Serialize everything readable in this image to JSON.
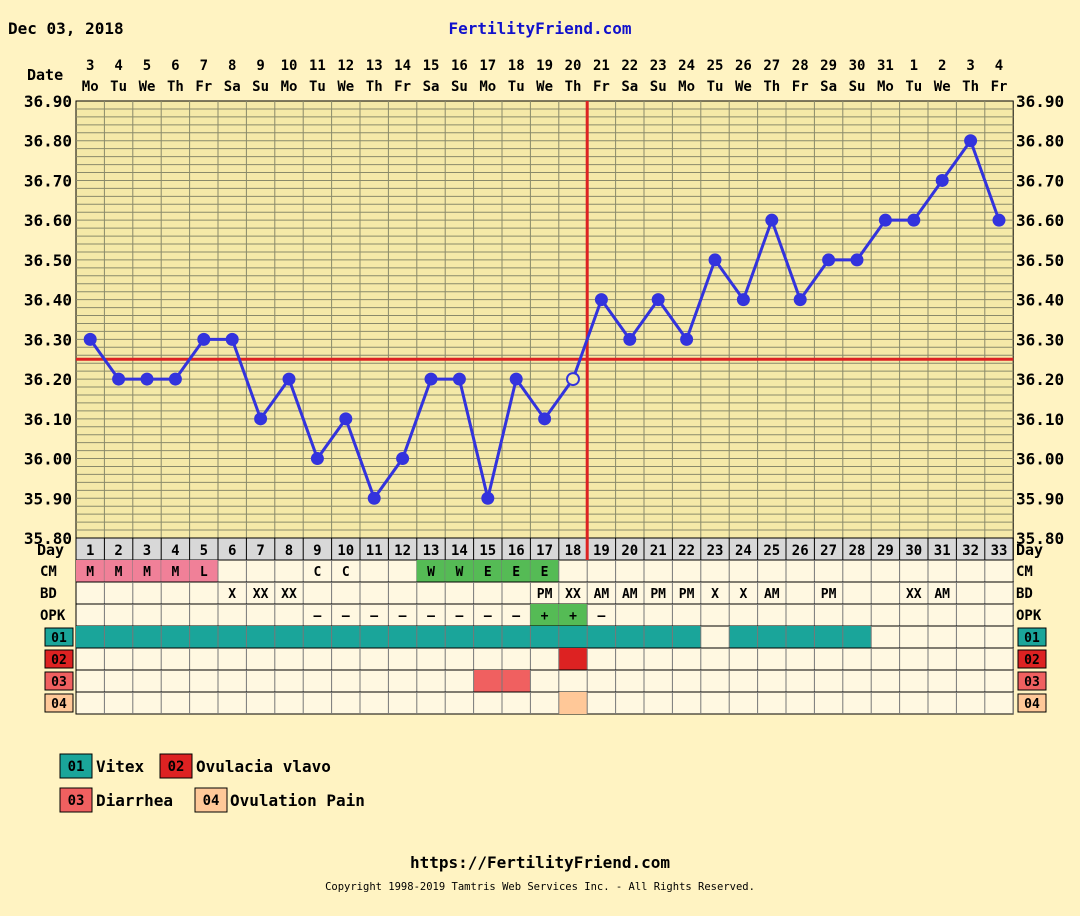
{
  "header": {
    "date_text": "Dec 03, 2018",
    "site_title": "FertilityFriend.com",
    "date_label": "Date",
    "day_label": "Day"
  },
  "colors": {
    "background": "#FFF3C2",
    "plot_bg": "#F5E9A8",
    "grid": "#8A8A6A",
    "temp_line": "#3333DD",
    "coverline": "#DD2222",
    "ovulation_line": "#DD2222",
    "cm_mucus_pink": "#F08098",
    "cm_egg_green": "#55BB55",
    "opk_green": "#55BB55",
    "cell_bg": "#FFF8E1",
    "vitex": "#1AA59A",
    "ovulacia": "#DD2222",
    "diarrhea": "#F06060",
    "ovulation_pain": "#FFC898"
  },
  "dates": [
    {
      "d": "3",
      "w": "Mo"
    },
    {
      "d": "4",
      "w": "Tu"
    },
    {
      "d": "5",
      "w": "We"
    },
    {
      "d": "6",
      "w": "Th"
    },
    {
      "d": "7",
      "w": "Fr"
    },
    {
      "d": "8",
      "w": "Sa"
    },
    {
      "d": "9",
      "w": "Su"
    },
    {
      "d": "10",
      "w": "Mo"
    },
    {
      "d": "11",
      "w": "Tu"
    },
    {
      "d": "12",
      "w": "We"
    },
    {
      "d": "13",
      "w": "Th"
    },
    {
      "d": "14",
      "w": "Fr"
    },
    {
      "d": "15",
      "w": "Sa"
    },
    {
      "d": "16",
      "w": "Su"
    },
    {
      "d": "17",
      "w": "Mo"
    },
    {
      "d": "18",
      "w": "Tu"
    },
    {
      "d": "19",
      "w": "We"
    },
    {
      "d": "20",
      "w": "Th"
    },
    {
      "d": "21",
      "w": "Fr"
    },
    {
      "d": "22",
      "w": "Sa"
    },
    {
      "d": "23",
      "w": "Su"
    },
    {
      "d": "24",
      "w": "Mo"
    },
    {
      "d": "25",
      "w": "Tu"
    },
    {
      "d": "26",
      "w": "We"
    },
    {
      "d": "27",
      "w": "Th"
    },
    {
      "d": "28",
      "w": "Fr"
    },
    {
      "d": "29",
      "w": "Sa"
    },
    {
      "d": "30",
      "w": "Su"
    },
    {
      "d": "31",
      "w": "Mo"
    },
    {
      "d": "1",
      "w": "Tu"
    },
    {
      "d": "2",
      "w": "We"
    },
    {
      "d": "3",
      "w": "Th"
    },
    {
      "d": "4",
      "w": "Fr"
    }
  ],
  "chart_data": {
    "type": "line",
    "x": [
      1,
      2,
      3,
      4,
      5,
      6,
      7,
      8,
      9,
      10,
      11,
      12,
      13,
      14,
      15,
      16,
      17,
      18,
      19,
      20,
      21,
      22,
      23,
      24,
      25,
      26,
      27,
      28,
      29,
      30,
      31,
      32,
      33
    ],
    "series": [
      {
        "values": [
          36.3,
          36.2,
          36.2,
          36.2,
          36.3,
          36.3,
          36.1,
          36.2,
          36.0,
          36.1,
          35.9,
          36.0,
          36.2,
          36.2,
          35.9,
          36.2,
          36.1,
          36.2,
          36.4,
          36.3,
          36.4,
          36.3,
          36.5,
          36.4,
          36.6,
          36.4,
          36.5,
          36.5,
          36.6,
          36.6,
          36.7,
          36.8,
          36.6
        ]
      }
    ],
    "open_points": [
      18
    ],
    "ylim": [
      35.8,
      36.9
    ],
    "yticks": [
      "36.90",
      "36.80",
      "36.70",
      "36.60",
      "36.50",
      "36.40",
      "36.30",
      "36.20",
      "36.10",
      "36.00",
      "35.90",
      "35.80"
    ],
    "coverline": 36.25,
    "ovulation_day": 18,
    "grid": true
  },
  "rows": {
    "cm": {
      "label": "CM",
      "cells": {
        "1": {
          "t": "M",
          "c": "cm_mucus_pink"
        },
        "2": {
          "t": "M",
          "c": "cm_mucus_pink"
        },
        "3": {
          "t": "M",
          "c": "cm_mucus_pink"
        },
        "4": {
          "t": "M",
          "c": "cm_mucus_pink"
        },
        "5": {
          "t": "L",
          "c": "cm_mucus_pink"
        },
        "9": {
          "t": "C"
        },
        "10": {
          "t": "C"
        },
        "13": {
          "t": "W",
          "c": "cm_egg_green"
        },
        "14": {
          "t": "W",
          "c": "cm_egg_green"
        },
        "15": {
          "t": "E",
          "c": "cm_egg_green"
        },
        "16": {
          "t": "E",
          "c": "cm_egg_green"
        },
        "17": {
          "t": "E",
          "c": "cm_egg_green"
        }
      }
    },
    "bd": {
      "label": "BD",
      "cells": {
        "6": {
          "t": "X"
        },
        "7": {
          "t": "XX"
        },
        "8": {
          "t": "XX"
        },
        "17": {
          "t": "PM"
        },
        "18": {
          "t": "XX"
        },
        "19": {
          "t": "AM"
        },
        "20": {
          "t": "AM"
        },
        "21": {
          "t": "PM"
        },
        "22": {
          "t": "PM"
        },
        "23": {
          "t": "X"
        },
        "24": {
          "t": "X"
        },
        "25": {
          "t": "AM"
        },
        "27": {
          "t": "PM"
        },
        "30": {
          "t": "XX"
        },
        "31": {
          "t": "AM"
        }
      }
    },
    "opk": {
      "label": "OPK",
      "cells": {
        "9": {
          "t": "–"
        },
        "10": {
          "t": "–"
        },
        "11": {
          "t": "–"
        },
        "12": {
          "t": "–"
        },
        "13": {
          "t": "–"
        },
        "14": {
          "t": "–"
        },
        "15": {
          "t": "–"
        },
        "16": {
          "t": "–"
        },
        "17": {
          "t": "+",
          "c": "opk_green"
        },
        "18": {
          "t": "+",
          "c": "opk_green"
        },
        "19": {
          "t": "–"
        }
      }
    },
    "custom": [
      {
        "code": "01",
        "color": "vitex",
        "days": [
          1,
          2,
          3,
          4,
          5,
          6,
          7,
          8,
          9,
          10,
          11,
          12,
          13,
          14,
          15,
          16,
          17,
          18,
          19,
          20,
          21,
          22,
          24,
          25,
          26,
          27,
          28
        ]
      },
      {
        "code": "02",
        "color": "ovulacia",
        "days": [
          18
        ]
      },
      {
        "code": "03",
        "color": "diarrhea",
        "days": [
          15,
          16
        ]
      },
      {
        "code": "04",
        "color": "ovulation_pain",
        "days": [
          18
        ]
      }
    ]
  },
  "legend": [
    {
      "code": "01",
      "label": "Vitex",
      "color": "vitex"
    },
    {
      "code": "02",
      "label": "Ovulacia vlavo",
      "color": "ovulacia"
    },
    {
      "code": "03",
      "label": "Diarrhea",
      "color": "diarrhea"
    },
    {
      "code": "04",
      "label": "Ovulation Pain",
      "color": "ovulation_pain"
    }
  ],
  "footer": {
    "url": "https://FertilityFriend.com",
    "copyright": "Copyright 1998-2019 Tamtris Web Services Inc. - All Rights Reserved."
  }
}
